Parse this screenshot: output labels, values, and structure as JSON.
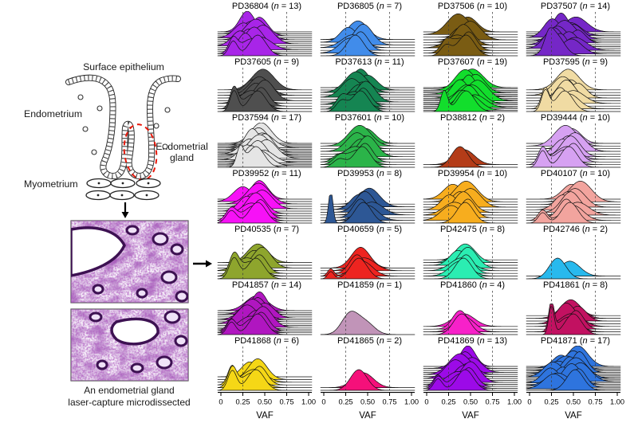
{
  "diagram": {
    "surface_epithelium_label": "Surface epithelium",
    "endometrium_label": "Endometrium",
    "endometrial_gland_label_line1": "Endometrial",
    "endometrial_gland_label_line2": "gland",
    "myometrium_label": "Myometrium",
    "caption_line1": "An endometrial gland",
    "caption_line2": "laser-capture microdissected",
    "gland_highlight_color": "#e8190c"
  },
  "axis": {
    "ticks": [
      "0",
      "0.25",
      "0.50",
      "0.75",
      "1.00"
    ],
    "tick_values": [
      0,
      0.25,
      0.5,
      0.75,
      1
    ],
    "xlabel": "VAF",
    "gridlines": [
      0.25,
      0.75
    ]
  },
  "chart_data": {
    "type": "ridgeline-density",
    "xlabel": "VAF",
    "xlim": [
      0,
      1
    ],
    "gridlines": [
      0.25,
      0.75
    ],
    "columns": 4,
    "panels": [
      {
        "id": "PD36804",
        "n": 13,
        "color": "#a825e8",
        "mus": [
          0.42,
          0.35,
          0.28,
          0.45,
          0.38,
          0.22,
          0.48,
          0.32,
          0.4,
          0.26,
          0.44,
          0.36,
          0.3
        ],
        "low_peak": {
          "mu": 0.14,
          "sigma": 0.05,
          "amp": 0.7,
          "count": 2
        }
      },
      {
        "id": "PD36805",
        "n": 7,
        "color": "#418cea",
        "mus": [
          0.36,
          0.3,
          0.42,
          0.33,
          0.45,
          0.28,
          0.39
        ]
      },
      {
        "id": "PD37506",
        "n": 10,
        "color": "#7a5c13",
        "mus": [
          0.45,
          0.4,
          0.48,
          0.35,
          0.42,
          0.38,
          0.5,
          0.44,
          0.36,
          0.47
        ],
        "low_peak": {
          "mu": 0.22,
          "sigma": 0.06,
          "amp": 0.5,
          "count": 2
        }
      },
      {
        "id": "PD37507",
        "n": 14,
        "color": "#7527c7",
        "mus": [
          0.3,
          0.48,
          0.35,
          0.52,
          0.28,
          0.45,
          0.32,
          0.55,
          0.4,
          0.5,
          0.26,
          0.47,
          0.36,
          0.53
        ],
        "low_peak": {
          "mu": 0.22,
          "sigma": 0.05,
          "amp": 0.6,
          "count": 2
        }
      },
      {
        "id": "PD37605",
        "n": 9,
        "color": "#4f4f4f",
        "mus": [
          0.42,
          0.38,
          0.46,
          0.35,
          0.5,
          0.4,
          0.44,
          0.36,
          0.48
        ],
        "low_peak": {
          "mu": 0.15,
          "sigma": 0.045,
          "amp": 1.0,
          "count": 2
        }
      },
      {
        "id": "PD37613",
        "n": 11,
        "color": "#158552",
        "mus": [
          0.42,
          0.38,
          0.45,
          0.35,
          0.48,
          0.4,
          0.32,
          0.44,
          0.37,
          0.5,
          0.42
        ],
        "low_peak": {
          "mu": 0.2,
          "sigma": 0.06,
          "amp": 0.5,
          "count": 2
        }
      },
      {
        "id": "PD37607",
        "n": 19,
        "color": "#12de2c",
        "mus": [
          0.45,
          0.5,
          0.42,
          0.55,
          0.48,
          0.4,
          0.52,
          0.44,
          0.58,
          0.46,
          0.38,
          0.54,
          0.48,
          0.42,
          0.56,
          0.5,
          0.44,
          0.48,
          0.52
        ],
        "low_peak": {
          "mu": 0.2,
          "sigma": 0.04,
          "amp": 1.0,
          "count": 1
        }
      },
      {
        "id": "PD37595",
        "n": 9,
        "color": "#f0dba3",
        "mus": [
          0.4,
          0.45,
          0.35,
          0.5,
          0.42,
          0.55,
          0.38,
          0.47,
          0.44
        ],
        "low_peak": {
          "mu": 0.18,
          "sigma": 0.045,
          "amp": 1.0,
          "count": 2
        }
      },
      {
        "id": "PD37594",
        "n": 17,
        "color": "#e5e5e5",
        "mus": [
          0.4,
          0.45,
          0.35,
          0.48,
          0.42,
          0.3,
          0.52,
          0.38,
          0.44,
          0.33,
          0.5,
          0.41,
          0.36,
          0.47,
          0.43,
          0.39,
          0.46
        ],
        "low_peak": {
          "mu": 0.22,
          "sigma": 0.04,
          "amp": 0.9,
          "count": 1
        }
      },
      {
        "id": "PD37601",
        "n": 10,
        "color": "#2bb449",
        "mus": [
          0.44,
          0.4,
          0.47,
          0.36,
          0.5,
          0.42,
          0.38,
          0.46,
          0.41,
          0.48
        ],
        "low_peak": {
          "mu": 0.18,
          "sigma": 0.07,
          "amp": 0.4,
          "count": 3
        }
      },
      {
        "id": "PD38812",
        "n": 2,
        "color": "#b43c18",
        "mus": [
          0.38,
          0.43
        ]
      },
      {
        "id": "PD39444",
        "n": 10,
        "color": "#d6a1f2",
        "mus": [
          0.45,
          0.4,
          0.5,
          0.43,
          0.47,
          0.38,
          0.52,
          0.44,
          0.41,
          0.48
        ],
        "low_peak": {
          "mu": 0.15,
          "sigma": 0.05,
          "amp": 0.8,
          "count": 2
        }
      },
      {
        "id": "PD39952",
        "n": 11,
        "color": "#f711f7",
        "mus": [
          0.42,
          0.38,
          0.45,
          0.35,
          0.4,
          0.3,
          0.47,
          0.36,
          0.43,
          0.25,
          0.44
        ],
        "low_peak": {
          "mu": 0.12,
          "sigma": 0.06,
          "amp": 0.6,
          "count": 2
        }
      },
      {
        "id": "PD39953",
        "n": 8,
        "color": "#2d5795",
        "mus": [
          0.45,
          0.5,
          0.42,
          0.55,
          0.47,
          0.4,
          0.52,
          0.46
        ],
        "low_peak": {
          "mu": 0.08,
          "sigma": 0.025,
          "amp": 1.6,
          "count": 1
        }
      },
      {
        "id": "PD39954",
        "n": 10,
        "color": "#f7ad1e",
        "mus": [
          0.44,
          0.28,
          0.47,
          0.32,
          0.42,
          0.26,
          0.5,
          0.38,
          0.45,
          0.3
        ]
      },
      {
        "id": "PD40107",
        "n": 10,
        "color": "#f2a49e",
        "mus": [
          0.46,
          0.5,
          0.42,
          0.55,
          0.47,
          0.38,
          0.52,
          0.44,
          0.58,
          0.48
        ],
        "low_peak": {
          "mu": 0.15,
          "sigma": 0.05,
          "amp": 0.5,
          "count": 2
        }
      },
      {
        "id": "PD40535",
        "n": 7,
        "color": "#8ea52d",
        "mus": [
          0.4,
          0.35,
          0.44,
          0.3,
          0.47,
          0.38,
          0.42
        ],
        "low_peak": {
          "mu": 0.15,
          "sigma": 0.055,
          "amp": 1.0,
          "count": 2
        }
      },
      {
        "id": "PD40659",
        "n": 5,
        "color": "#ed2420",
        "mus": [
          0.4,
          0.44,
          0.38,
          0.46,
          0.42
        ],
        "low_peak": {
          "mu": 0.08,
          "sigma": 0.035,
          "amp": 0.35,
          "count": 2
        }
      },
      {
        "id": "PD42475",
        "n": 8,
        "color": "#2bedb2",
        "mus": [
          0.42,
          0.38,
          0.45,
          0.4,
          0.47,
          0.36,
          0.44,
          0.41
        ]
      },
      {
        "id": "PD42746",
        "n": 2,
        "color": "#28b9ed",
        "mus": [
          0.32,
          0.46
        ]
      },
      {
        "id": "PD41857",
        "n": 14,
        "color": "#b016c0",
        "mus": [
          0.42,
          0.38,
          0.46,
          0.34,
          0.48,
          0.4,
          0.3,
          0.45,
          0.36,
          0.5,
          0.42,
          0.37,
          0.44,
          0.41
        ],
        "low_peak": {
          "mu": 0.12,
          "sigma": 0.05,
          "amp": 0.6,
          "count": 3
        }
      },
      {
        "id": "PD41859",
        "n": 1,
        "color": "#c194b8",
        "mus": [
          0.3
        ],
        "low_peak": {
          "mu": 0.48,
          "sigma": 0.1,
          "amp": 0.55,
          "count": 1
        }
      },
      {
        "id": "PD41860",
        "n": 4,
        "color": "#f721c9",
        "mus": [
          0.4,
          0.43,
          0.38,
          0.42
        ]
      },
      {
        "id": "PD41861",
        "n": 8,
        "color": "#c21161",
        "mus": [
          0.5,
          0.45,
          0.53,
          0.48,
          0.42,
          0.55,
          0.47,
          0.51
        ],
        "low_peak": {
          "mu": 0.25,
          "sigma": 0.03,
          "amp": 1.4,
          "count": 2
        }
      },
      {
        "id": "PD41868",
        "n": 6,
        "color": "#f5d716",
        "mus": [
          0.4,
          0.36,
          0.44,
          0.38,
          0.42,
          0.33
        ],
        "low_peak": {
          "mu": 0.13,
          "sigma": 0.05,
          "amp": 0.95,
          "count": 3
        }
      },
      {
        "id": "PD41865",
        "n": 2,
        "color": "#f5107a",
        "mus": [
          0.4,
          0.45
        ]
      },
      {
        "id": "PD41869",
        "n": 13,
        "color": "#9c0ae8",
        "mus": [
          0.44,
          0.4,
          0.48,
          0.36,
          0.5,
          0.42,
          0.33,
          0.46,
          0.38,
          0.52,
          0.44,
          0.41,
          0.47
        ],
        "low_peak": {
          "mu": 0.13,
          "sigma": 0.05,
          "amp": 0.55,
          "count": 3
        }
      },
      {
        "id": "PD41871",
        "n": 17,
        "color": "#2e74de",
        "mus": [
          0.52,
          0.28,
          0.56,
          0.32,
          0.48,
          0.24,
          0.58,
          0.38,
          0.53,
          0.27,
          0.46,
          0.33,
          0.57,
          0.42,
          0.5,
          0.36,
          0.55
        ]
      }
    ]
  }
}
